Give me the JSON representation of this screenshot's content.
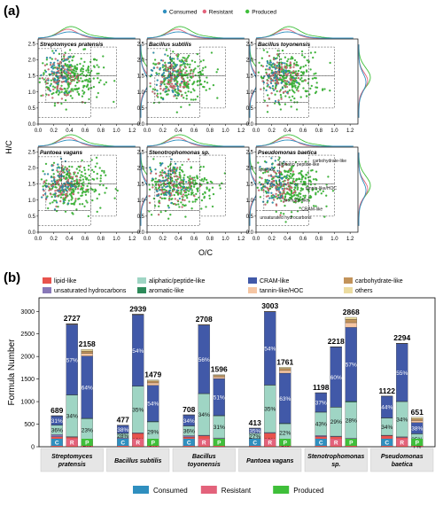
{
  "panel_a_label": "(a)",
  "panel_b_label": "(b)",
  "colors": {
    "consumed": "#2f8fbf",
    "resistant": "#e3627b",
    "produced": "#3fbf3a",
    "grid_bg": "#ffffff"
  },
  "legend_top": [
    {
      "key": "consumed",
      "label": "Consumed"
    },
    {
      "key": "resistant",
      "label": "Resistant"
    },
    {
      "key": "produced",
      "label": "Produced"
    }
  ],
  "chart_data": [
    {
      "type": "scatter",
      "xlabel": "O/C",
      "ylabel": "H/C",
      "xlim": [
        0,
        1.2
      ],
      "ylim": [
        0,
        2.5
      ],
      "xticks": [
        "0.0",
        "0.2",
        "0.4",
        "0.6",
        "0.8",
        "1.0",
        "1.2"
      ],
      "yticks": [
        "0.0",
        "0.5",
        "1.0",
        "1.5",
        "2.0",
        "2.5"
      ],
      "series": [
        {
          "name": "Consumed"
        },
        {
          "name": "Resistant"
        },
        {
          "name": "Produced"
        }
      ],
      "panels": [
        {
          "name": "Streptomyces pratensis"
        },
        {
          "name": "Bacillus subtilis"
        },
        {
          "name": "Bacillus toyonensis"
        },
        {
          "name": "Pantoea vagans"
        },
        {
          "name": "Stenotrophomonas sp."
        },
        {
          "name": "Pseudomonas baetica"
        }
      ],
      "region_labels": [
        "lipid-like",
        "aliphatic/ peptide-like",
        "carbohydrate-like",
        "tannin-like/HOC",
        "aromatic-like",
        "CRAM-like",
        "unsaturated hydrocarbons"
      ]
    },
    {
      "type": "bar",
      "ylabel": "Formula Number",
      "ylim": [
        0,
        3300
      ],
      "yticks": [
        0,
        500,
        1000,
        1500,
        2000,
        2500,
        3000
      ],
      "legend": [
        "lipid-like",
        "unsaturated hydrocarbons",
        "aliphatic/peptide-like",
        "aromatic-like",
        "CRAM-like",
        "tannin-like/HOC",
        "carbohydrate-like",
        "others"
      ],
      "legend_colors": {
        "lipid-like": "#e8534d",
        "unsaturated hydrocarbons": "#8878b8",
        "aliphatic/peptide-like": "#9fd5c4",
        "aromatic-like": "#2d8a5a",
        "CRAM-like": "#4159a8",
        "tannin-like/HOC": "#f6c6a3",
        "carbohydrate-like": "#c2935a",
        "others": "#ecdca0"
      },
      "categories": [
        "Streptomyces pratensis",
        "Bacillus subtilis",
        "Bacillus toyonensis",
        "Pantoea vagans",
        "Stenotrophomonas sp.",
        "Pseudomonas baetica"
      ],
      "bars_per_category": [
        "C",
        "R",
        "P"
      ],
      "bars_legend": [
        {
          "key": "consumed",
          "label": "Consumed"
        },
        {
          "key": "resistant",
          "label": "Resistant"
        },
        {
          "key": "produced",
          "label": "Produced"
        }
      ],
      "groups": [
        {
          "name": "Streptomyces pratensis",
          "bars": [
            {
              "code": "C",
              "total": 689,
              "segs": {
                "lipid-like": 220,
                "unsaturated hydrocarbons": 50,
                "aliphatic/peptide-like": 205,
                "aromatic-like": 5,
                "CRAM-like": 200,
                "tannin-like/HOC": 5,
                "carbohydrate-like": 2,
                "others": 2
              },
              "pct": [
                "32%",
                "36%",
                "31%"
              ]
            },
            {
              "code": "R",
              "total": 2727,
              "segs": {
                "lipid-like": 210,
                "unsaturated hydrocarbons": 15,
                "aliphatic/peptide-like": 920,
                "aromatic-like": 5,
                "CRAM-like": 1555,
                "tannin-like/HOC": 10,
                "carbohydrate-like": 7,
                "others": 5
              },
              "pct": [
                "8%",
                "34%",
                "57%"
              ]
            },
            {
              "code": "P",
              "total": 2158,
              "segs": {
                "lipid-like": 105,
                "unsaturated hydrocarbons": 20,
                "aliphatic/peptide-like": 495,
                "aromatic-like": 10,
                "CRAM-like": 1380,
                "tannin-like/HOC": 60,
                "carbohydrate-like": 50,
                "others": 38
              },
              "pct": [
                "5%",
                "23%",
                "64%"
              ]
            }
          ]
        },
        {
          "name": "Bacillus subtilis",
          "bars": [
            {
              "code": "C",
              "total": 477,
              "segs": {
                "lipid-like": 160,
                "unsaturated hydrocarbons": 35,
                "aliphatic/peptide-like": 100,
                "aromatic-like": 2,
                "CRAM-like": 175,
                "tannin-like/HOC": 2,
                "carbohydrate-like": 2,
                "others": 1
              },
              "pct": [
                "34%",
                "28%",
                "38%"
              ]
            },
            {
              "code": "R",
              "total": 2939,
              "segs": {
                "lipid-like": 295,
                "unsaturated hydrocarbons": 15,
                "aliphatic/peptide-like": 1030,
                "aromatic-like": 5,
                "CRAM-like": 1580,
                "tannin-like/HOC": 6,
                "carbohydrate-like": 5,
                "others": 3
              },
              "pct": [
                "10%",
                "35%",
                "54%"
              ]
            },
            {
              "code": "P",
              "total": 1479,
              "segs": {
                "lipid-like": 110,
                "unsaturated hydrocarbons": 15,
                "aliphatic/peptide-like": 425,
                "aromatic-like": 10,
                "CRAM-like": 800,
                "tannin-like/HOC": 55,
                "carbohydrate-like": 40,
                "others": 24
              },
              "pct": [
                "8%",
                "29%",
                "54%"
              ]
            }
          ]
        },
        {
          "name": "Bacillus toyonensis",
          "bars": [
            {
              "code": "C",
              "total": 708,
              "segs": {
                "lipid-like": 215,
                "unsaturated hydrocarbons": 30,
                "aliphatic/peptide-like": 215,
                "aromatic-like": 3,
                "CRAM-like": 240,
                "tannin-like/HOC": 3,
                "carbohydrate-like": 1,
                "others": 1
              },
              "pct": [
                "30%",
                "36%",
                "34%"
              ]
            },
            {
              "code": "R",
              "total": 2708,
              "segs": {
                "lipid-like": 240,
                "unsaturated hydrocarbons": 15,
                "aliphatic/peptide-like": 920,
                "aromatic-like": 5,
                "CRAM-like": 1515,
                "tannin-like/HOC": 7,
                "carbohydrate-like": 4,
                "others": 2
              },
              "pct": [
                "9%",
                "34%",
                "56%"
              ]
            },
            {
              "code": "P",
              "total": 1596,
              "segs": {
                "lipid-like": 175,
                "unsaturated hydrocarbons": 20,
                "aliphatic/peptide-like": 490,
                "aromatic-like": 10,
                "CRAM-like": 815,
                "tannin-like/HOC": 40,
                "carbohydrate-like": 30,
                "others": 16
              },
              "pct": [
                "11%",
                "31%",
                "51%"
              ]
            }
          ]
        },
        {
          "name": "Pantoea vagans",
          "bars": [
            {
              "code": "C",
              "total": 413,
              "segs": {
                "lipid-like": 155,
                "unsaturated hydrocarbons": 30,
                "aliphatic/peptide-like": 110,
                "aromatic-like": 2,
                "CRAM-like": 113,
                "tannin-like/HOC": 1,
                "carbohydrate-like": 1,
                "others": 1
              },
              "pct": [
                "37%",
                "27%",
                "35%"
              ]
            },
            {
              "code": "R",
              "total": 3003,
              "segs": {
                "lipid-like": 300,
                "unsaturated hydrocarbons": 15,
                "aliphatic/peptide-like": 1050,
                "aromatic-like": 5,
                "CRAM-like": 1620,
                "tannin-like/HOC": 6,
                "carbohydrate-like": 4,
                "others": 3
              },
              "pct": [
                "10%",
                "35%",
                "54%"
              ]
            },
            {
              "code": "P",
              "total": 1761,
              "segs": {
                "lipid-like": 100,
                "unsaturated hydrocarbons": 20,
                "aliphatic/peptide-like": 390,
                "aromatic-like": 10,
                "CRAM-like": 1110,
                "tannin-like/HOC": 60,
                "carbohydrate-like": 45,
                "others": 26
              },
              "pct": [
                "6%",
                "22%",
                "63%"
              ]
            }
          ]
        },
        {
          "name": "Stenotrophomonas sp.",
          "bars": [
            {
              "code": "C",
              "total": 1198,
              "segs": {
                "lipid-like": 225,
                "unsaturated hydrocarbons": 25,
                "aliphatic/peptide-like": 515,
                "aromatic-like": 5,
                "CRAM-like": 425,
                "tannin-like/HOC": 2,
                "carbohydrate-like": 1,
                "others": 0
              },
              "pct": [
                "19%",
                "43%",
                "37%"
              ]
            },
            {
              "code": "R",
              "total": 2218,
              "segs": {
                "lipid-like": 220,
                "unsaturated hydrocarbons": 15,
                "aliphatic/peptide-like": 640,
                "aromatic-like": 5,
                "CRAM-like": 1330,
                "tannin-like/HOC": 4,
                "carbohydrate-like": 3,
                "others": 1
              },
              "pct": [
                "10%",
                "29%",
                "60%"
              ]
            },
            {
              "code": "P",
              "total": 2868,
              "segs": {
                "lipid-like": 165,
                "unsaturated hydrocarbons": 25,
                "aliphatic/peptide-like": 800,
                "aromatic-like": 15,
                "CRAM-like": 1640,
                "tannin-like/HOC": 105,
                "carbohydrate-like": 75,
                "others": 43
              },
              "pct": [
                "6%",
                "28%",
                "57%"
              ]
            }
          ]
        },
        {
          "name": "Pseudomonas baetica",
          "bars": [
            {
              "code": "C",
              "total": 1122,
              "segs": {
                "lipid-like": 245,
                "unsaturated hydrocarbons": 10,
                "aliphatic/peptide-like": 380,
                "aromatic-like": 5,
                "CRAM-like": 480,
                "tannin-like/HOC": 1,
                "carbohydrate-like": 1,
                "others": 0
              },
              "pct": [
                "22%",
                "34%",
                "44%"
              ]
            },
            {
              "code": "R",
              "total": 2294,
              "segs": {
                "lipid-like": 205,
                "unsaturated hydrocarbons": 15,
                "aliphatic/peptide-like": 780,
                "aromatic-like": 5,
                "CRAM-like": 1280,
                "tannin-like/HOC": 5,
                "carbohydrate-like": 3,
                "others": 1
              },
              "pct": [
                "9%",
                "34%",
                "55%"
              ]
            },
            {
              "code": "P",
              "total": 651,
              "segs": {
                "lipid-like": 45,
                "unsaturated hydrocarbons": 10,
                "aliphatic/peptide-like": 230,
                "aromatic-like": 5,
                "CRAM-like": 245,
                "tannin-like/HOC": 45,
                "carbohydrate-like": 40,
                "others": 31
              },
              "pct": [
                "7%",
                "35%",
                "38%"
              ]
            }
          ]
        }
      ]
    }
  ]
}
